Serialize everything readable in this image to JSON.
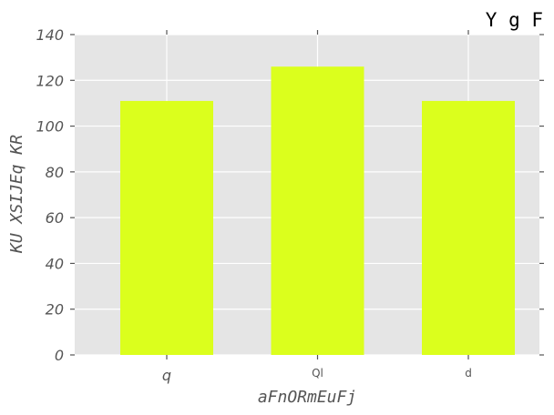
{
  "chart_data": {
    "type": "bar",
    "title": "Y g F",
    "xlabel": "aFnORmEuFj",
    "ylabel": "KU XSIJEq KR",
    "categories": [
      "q",
      "Ql",
      "d"
    ],
    "values": [
      111,
      126,
      111
    ],
    "ylim": [
      0,
      140
    ],
    "yticks": [
      0,
      20,
      40,
      60,
      80,
      100,
      120,
      140
    ],
    "grid": true,
    "legend": "none",
    "colors": {
      "bar": "#dbff1d",
      "plot_background": "#e5e5e5",
      "grid": "#ffffff",
      "tick": "#555555"
    }
  }
}
